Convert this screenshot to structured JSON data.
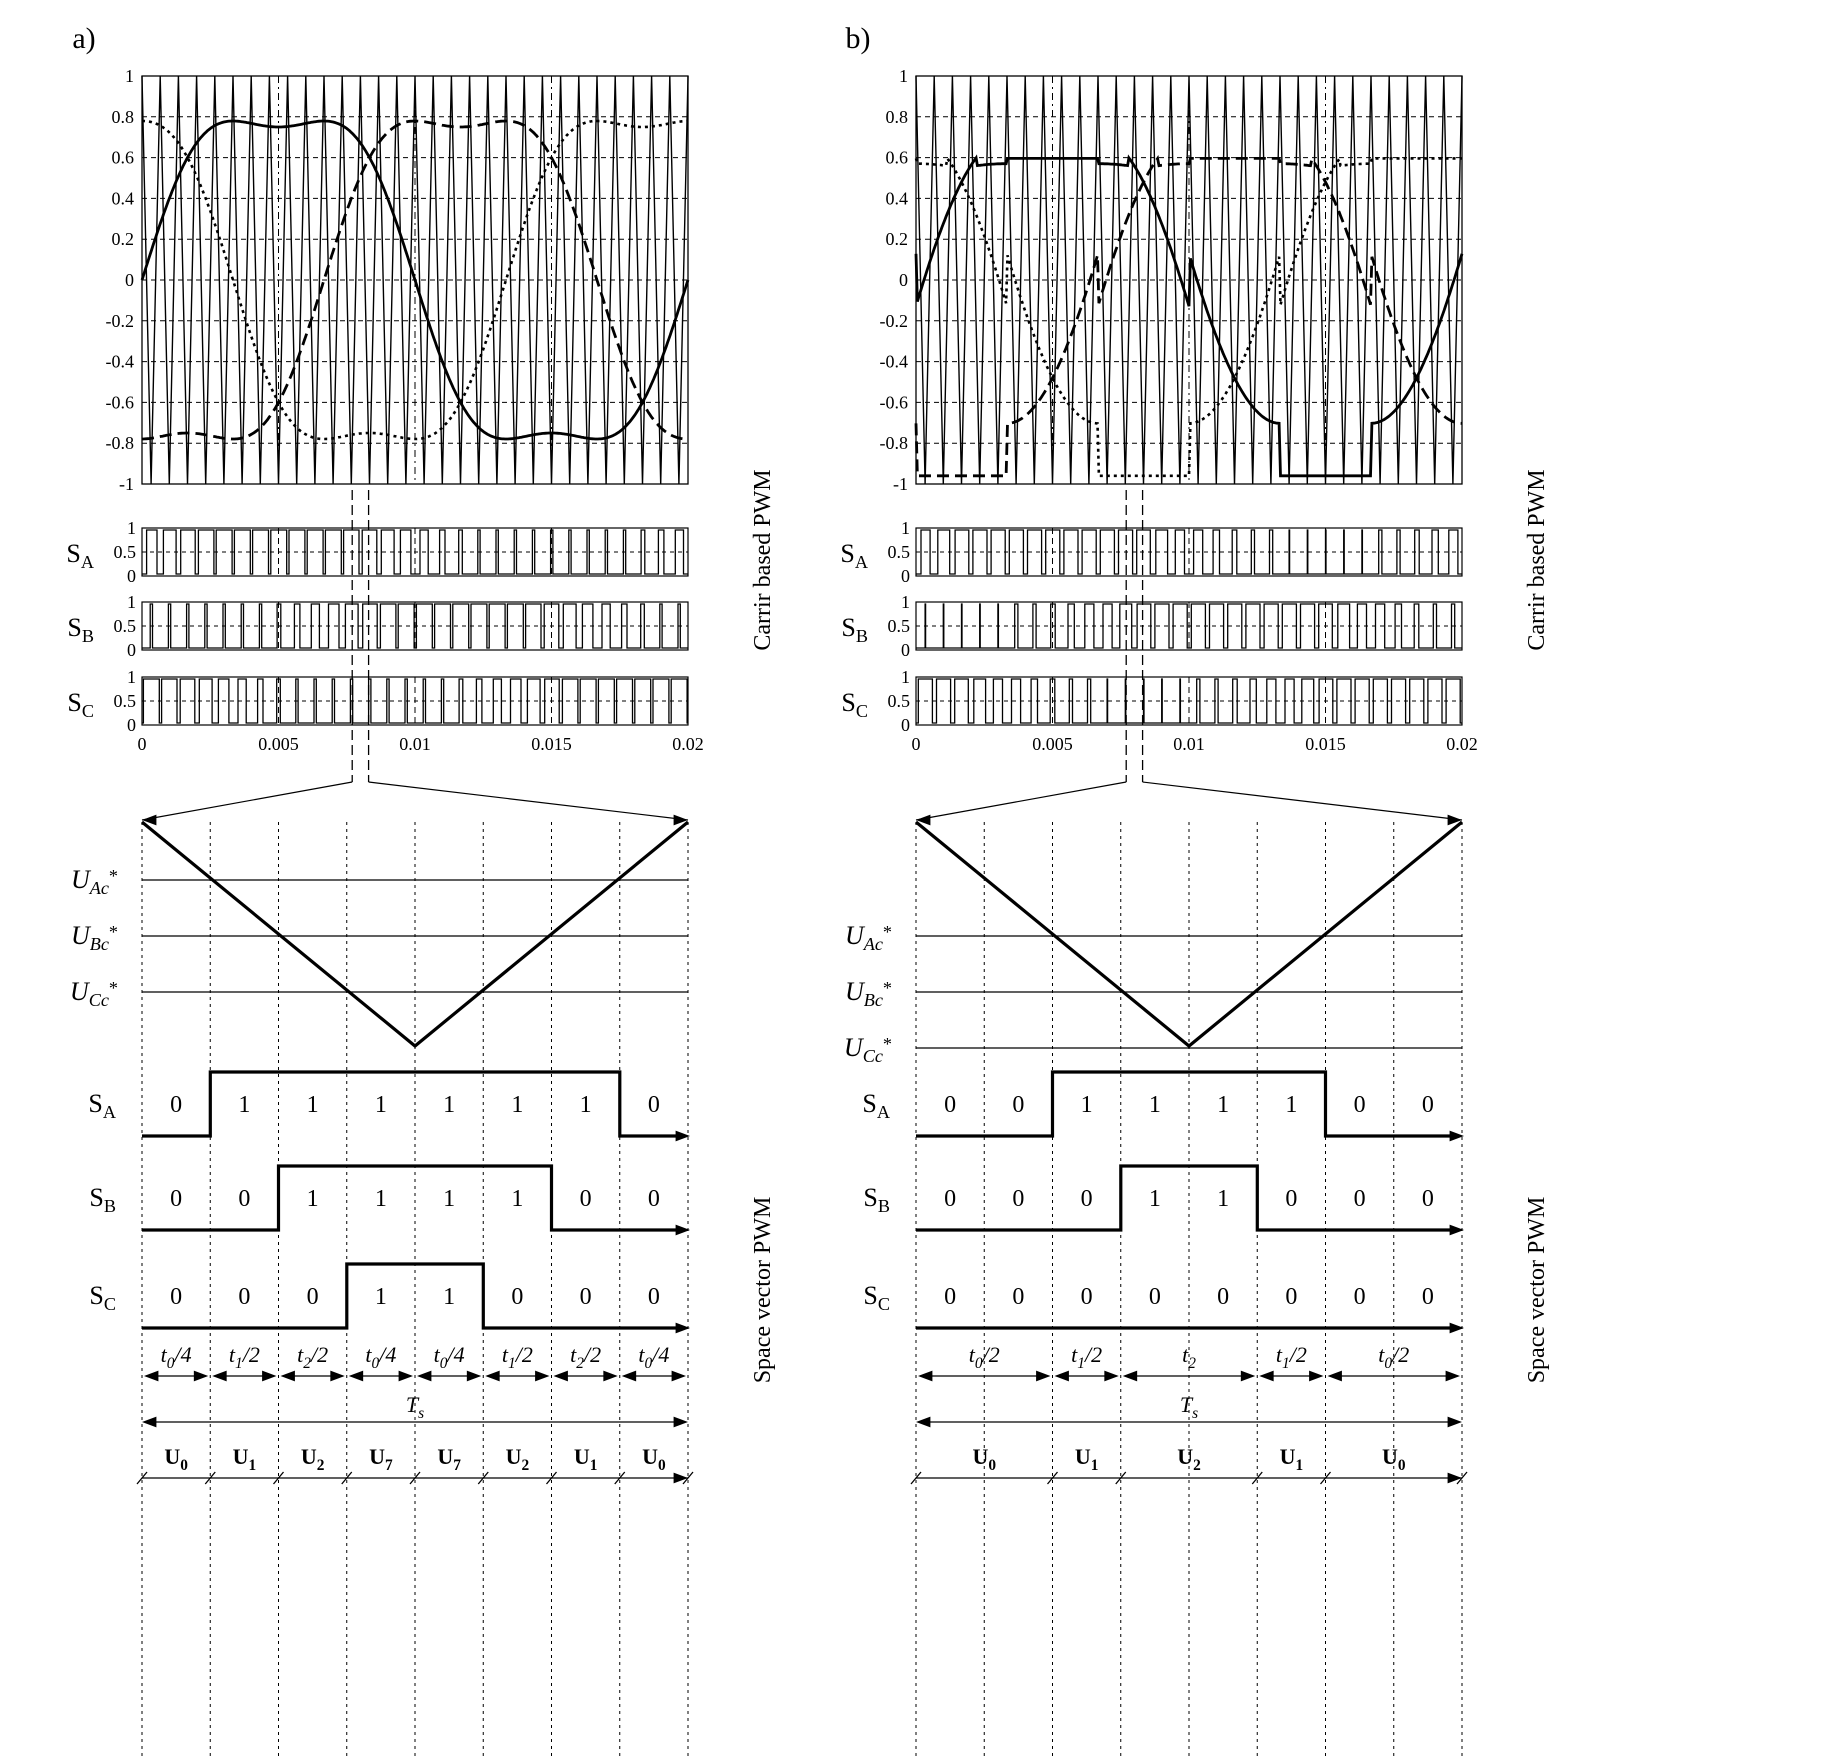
{
  "panels": [
    {
      "label": "a)",
      "side_top": "Carrir based PWM",
      "side_bottom": "Space vector PWM",
      "y_ticks": [
        "1",
        "0.8",
        "0.6",
        "0.4",
        "0.2",
        "0",
        "-0.2",
        "-0.4",
        "-0.6",
        "-0.8",
        "-1"
      ],
      "sw_ticks": [
        "1",
        "0.5",
        "0"
      ],
      "x_ticks": [
        "0",
        "0.005",
        "0.01",
        "0.015",
        "0.02"
      ],
      "switch_names": [
        "S",
        "S",
        "S"
      ],
      "switch_subs": [
        "A",
        "B",
        "C"
      ],
      "ref_names": [
        "U",
        "U",
        "U"
      ],
      "ref_subs": [
        "Ac",
        "Bc",
        "Cc"
      ],
      "ref_star": "*",
      "bits": [
        [
          "0",
          "1",
          "1",
          "1",
          "1",
          "1",
          "1",
          "0"
        ],
        [
          "0",
          "0",
          "1",
          "1",
          "1",
          "1",
          "0",
          "0"
        ],
        [
          "0",
          "0",
          "0",
          "1",
          "1",
          "0",
          "0",
          "0"
        ]
      ],
      "durations": [
        {
          "v": "t",
          "s": "0",
          "d": "/4"
        },
        {
          "v": "t",
          "s": "1",
          "d": "/2"
        },
        {
          "v": "t",
          "s": "2",
          "d": "/2"
        },
        {
          "v": "t",
          "s": "0",
          "d": "/4"
        },
        {
          "v": "t",
          "s": "0",
          "d": "/4"
        },
        {
          "v": "t",
          "s": "1",
          "d": "/2"
        },
        {
          "v": "t",
          "s": "2",
          "d": "/2"
        },
        {
          "v": "t",
          "s": "0",
          "d": "/4"
        }
      ],
      "period": {
        "v": "T",
        "s": "s"
      },
      "vectors": [
        {
          "v": "U",
          "s": "0"
        },
        {
          "v": "U",
          "s": "1"
        },
        {
          "v": "U",
          "s": "2"
        },
        {
          "v": "U",
          "s": "7"
        },
        {
          "v": "U",
          "s": "7"
        },
        {
          "v": "U",
          "s": "2"
        },
        {
          "v": "U",
          "s": "1"
        },
        {
          "v": "U",
          "s": "0"
        }
      ]
    },
    {
      "label": "b)",
      "side_top": "Carrir based PWM",
      "side_bottom": "Space vector PWM",
      "y_ticks": [
        "1",
        "0.8",
        "0.6",
        "0.4",
        "0.2",
        "0",
        "-0.2",
        "-0.4",
        "-0.6",
        "-0.8",
        "-1"
      ],
      "sw_ticks": [
        "1",
        "0.5",
        "0"
      ],
      "x_ticks": [
        "0",
        "0.005",
        "0.01",
        "0.015",
        "0.02"
      ],
      "switch_names": [
        "S",
        "S",
        "S"
      ],
      "switch_subs": [
        "A",
        "B",
        "C"
      ],
      "ref_names": [
        "U",
        "U",
        "U"
      ],
      "ref_subs": [
        "Ac",
        "Bc",
        "Cc"
      ],
      "ref_star": "*",
      "bits": [
        [
          "0",
          "0",
          "1",
          "1",
          "1",
          "1",
          "0",
          "0"
        ],
        [
          "0",
          "0",
          "0",
          "1",
          "1",
          "0",
          "0",
          "0"
        ],
        [
          "0",
          "0",
          "0",
          "0",
          "0",
          "0",
          "0",
          "0"
        ]
      ],
      "durations": [
        {
          "v": "t",
          "s": "0",
          "d": "/2"
        },
        {
          "v": "t",
          "s": "1",
          "d": "/2"
        },
        {
          "v": "t",
          "s": "2",
          "d": ""
        },
        {
          "v": "t",
          "s": "1",
          "d": "/2"
        },
        {
          "v": "t",
          "s": "0",
          "d": "/2"
        }
      ],
      "period": {
        "v": "T",
        "s": "s"
      },
      "vectors": [
        {
          "v": "U",
          "s": "0"
        },
        {
          "v": "U",
          "s": "1"
        },
        {
          "v": "U",
          "s": "2"
        },
        {
          "v": "U",
          "s": "1"
        },
        {
          "v": "U",
          "s": "0"
        }
      ]
    }
  ]
}
